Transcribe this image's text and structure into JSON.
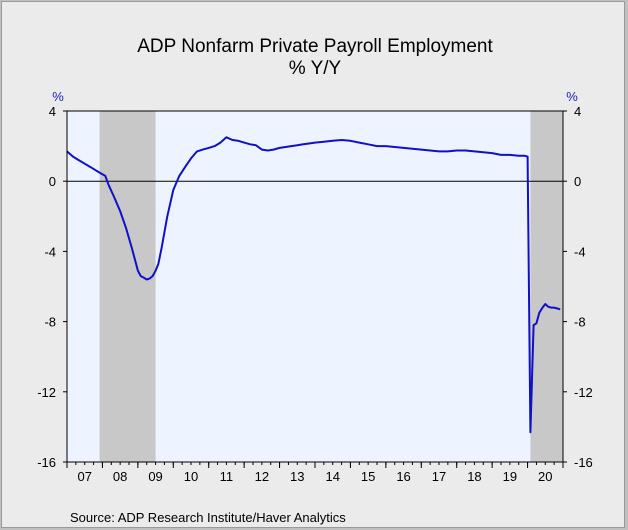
{
  "chart_data": {
    "type": "line",
    "title": "ADP Nonfarm Private Payroll Employment",
    "subtitle": "% Y/Y",
    "ylabel_left": "%",
    "ylabel_right": "%",
    "ylim": [
      -16,
      4
    ],
    "yticks": [
      4,
      0,
      -4,
      -8,
      -12,
      -16
    ],
    "xlim": [
      2007.0,
      2021.0
    ],
    "xtick_labels": [
      "07",
      "08",
      "09",
      "10",
      "11",
      "12",
      "13",
      "14",
      "15",
      "16",
      "17",
      "18",
      "19",
      "20"
    ],
    "source": "Source:  ADP Research Institute/Haver Analytics",
    "grid": false,
    "line_color": "#1010c8",
    "recession_color": "#c8c8c8",
    "plot_background": "#eef4ff",
    "recessions": [
      {
        "start": 2007.92,
        "end": 2009.5
      },
      {
        "start": 2020.08,
        "end": 2021.0
      }
    ],
    "series": [
      {
        "x": [
          2007.0,
          2007.17,
          2007.33,
          2007.5,
          2007.67,
          2007.83,
          2008.0,
          2008.08,
          2008.17,
          2008.33,
          2008.5,
          2008.67,
          2008.83,
          2009.0,
          2009.08,
          2009.17,
          2009.25,
          2009.33,
          2009.42,
          2009.5,
          2009.58,
          2009.67,
          2009.83,
          2010.0,
          2010.17,
          2010.33,
          2010.5,
          2010.67,
          2010.83,
          2011.0,
          2011.17,
          2011.33,
          2011.5,
          2011.67,
          2011.83,
          2012.0,
          2012.17,
          2012.33,
          2012.5,
          2012.67,
          2012.83,
          2013.0,
          2013.17,
          2013.33,
          2013.5,
          2013.67,
          2013.83,
          2014.0,
          2014.25,
          2014.5,
          2014.75,
          2015.0,
          2015.25,
          2015.5,
          2015.75,
          2016.0,
          2016.25,
          2016.5,
          2016.75,
          2017.0,
          2017.25,
          2017.5,
          2017.75,
          2018.0,
          2018.25,
          2018.5,
          2018.75,
          2019.0,
          2019.25,
          2019.5,
          2019.75,
          2019.92,
          2020.0,
          2020.08,
          2020.17,
          2020.25,
          2020.33,
          2020.42,
          2020.5,
          2020.58,
          2020.67,
          2020.75,
          2020.83,
          2020.92
        ],
        "y": [
          1.7,
          1.4,
          1.2,
          1.0,
          0.8,
          0.6,
          0.4,
          0.3,
          -0.2,
          -0.9,
          -1.7,
          -2.7,
          -3.8,
          -5.1,
          -5.4,
          -5.5,
          -5.6,
          -5.55,
          -5.4,
          -5.1,
          -4.7,
          -3.8,
          -2.0,
          -0.5,
          0.3,
          0.8,
          1.3,
          1.7,
          1.8,
          1.9,
          2.0,
          2.2,
          2.5,
          2.35,
          2.3,
          2.2,
          2.1,
          2.05,
          1.8,
          1.75,
          1.8,
          1.9,
          1.95,
          2.0,
          2.05,
          2.1,
          2.15,
          2.2,
          2.25,
          2.3,
          2.35,
          2.3,
          2.2,
          2.1,
          2.0,
          2.0,
          1.95,
          1.9,
          1.85,
          1.8,
          1.75,
          1.7,
          1.7,
          1.75,
          1.75,
          1.7,
          1.65,
          1.6,
          1.5,
          1.5,
          1.45,
          1.45,
          1.4,
          -14.3,
          -8.2,
          -8.1,
          -7.5,
          -7.2,
          -7.0,
          -7.15,
          -7.2,
          -7.2,
          -7.25,
          -7.3
        ]
      }
    ]
  }
}
